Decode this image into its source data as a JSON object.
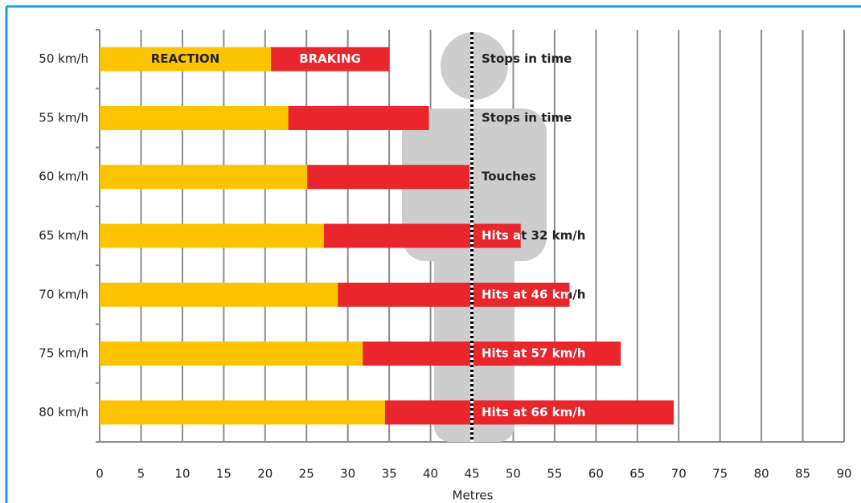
{
  "chart_data": {
    "type": "stacked-barh",
    "x_label": "Metres",
    "categories": [
      "50 km/h",
      "55 km/h",
      "60 km/h",
      "65 km/h",
      "70 km/h",
      "75 km/h",
      "80 km/h"
    ],
    "series": [
      {
        "name": "REACTION",
        "color": "#fcc400",
        "values": [
          20.7,
          22.8,
          25.1,
          27.1,
          28.8,
          31.8,
          34.5
        ]
      },
      {
        "name": "BRAKING",
        "color": "#e8262b",
        "values": [
          14.3,
          17.0,
          19.6,
          23.8,
          28.0,
          31.2,
          34.9
        ]
      }
    ],
    "xlim": [
      0,
      90
    ],
    "xticks": [
      0,
      5,
      10,
      15,
      20,
      25,
      30,
      35,
      40,
      45,
      50,
      55,
      60,
      65,
      70,
      75,
      80,
      85,
      90
    ],
    "grid": true,
    "marker_line": 45,
    "annotations": [
      "Stops in time",
      "Stops in time",
      "Touches",
      "Hits at 32 km/h",
      "Hits at 46 km/h",
      "Hits at 57 km/h",
      "Hits at 66 km/h"
    ]
  }
}
